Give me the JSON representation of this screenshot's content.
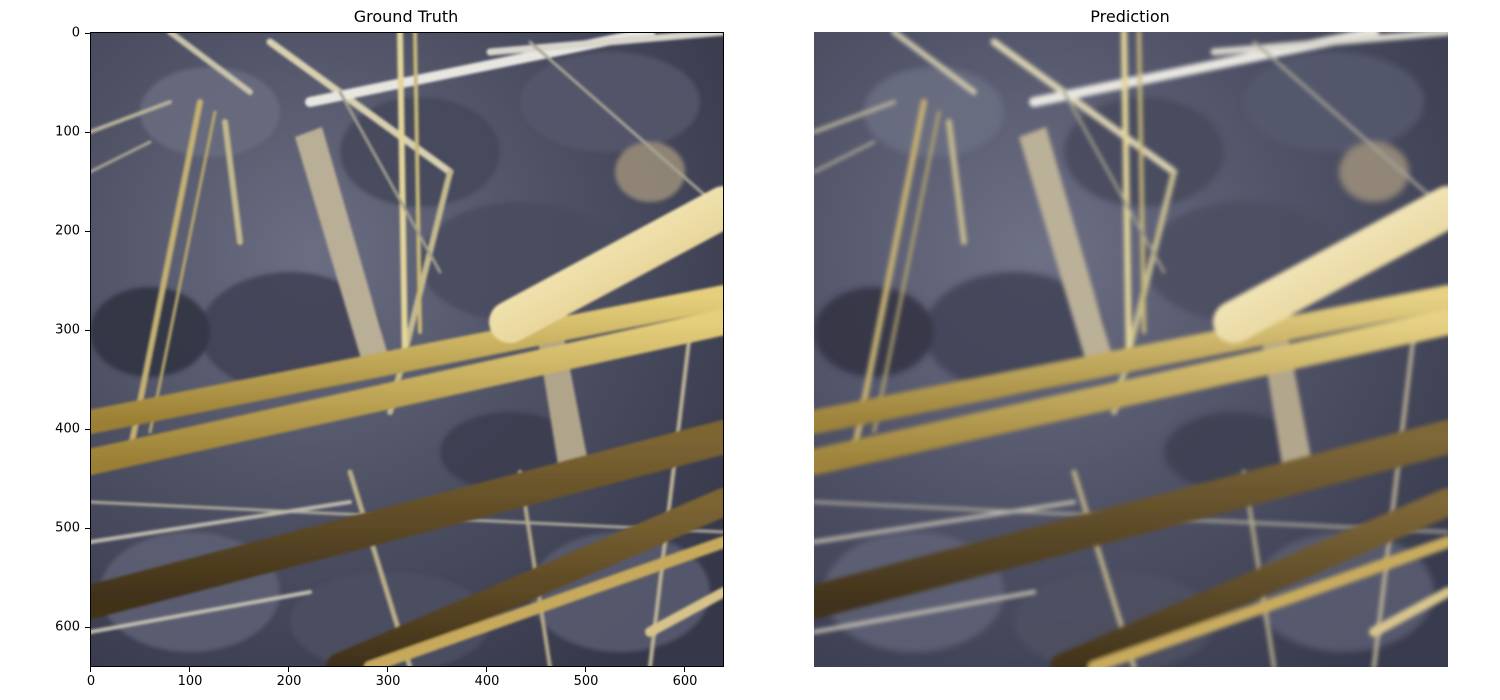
{
  "panels": [
    {
      "title": "Ground Truth"
    },
    {
      "title": "Prediction"
    }
  ],
  "axes": {
    "y_ticks": [
      "0",
      "100",
      "200",
      "300",
      "400",
      "500",
      "600"
    ],
    "x_ticks": [
      "0",
      "100",
      "200",
      "300",
      "400",
      "500",
      "600"
    ],
    "range": [
      0,
      640
    ]
  },
  "colors": {
    "soil_dark": "#3a3c4e",
    "soil_mid": "#5d6074",
    "soil_light": "#8a8b9a",
    "straw_bright": "#f2e6b4",
    "straw_gold": "#c9ad5a",
    "straw_dark": "#5e4a25",
    "stick_pale": "#b9ae96"
  }
}
